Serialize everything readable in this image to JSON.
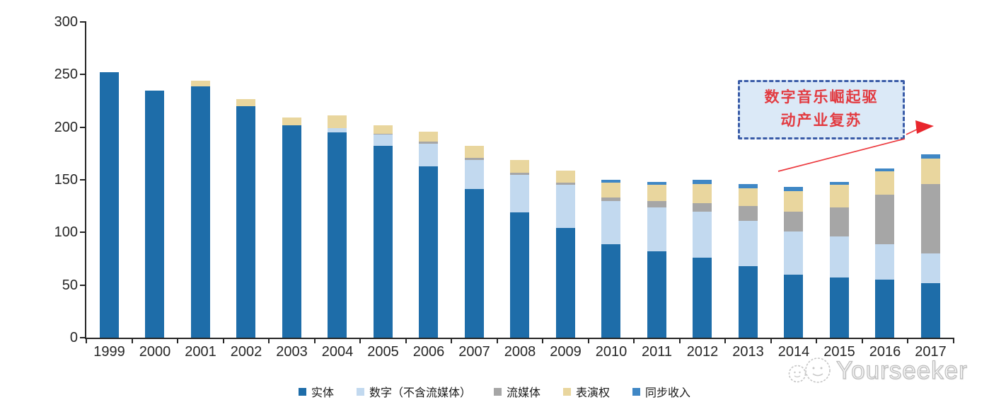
{
  "chart_data": {
    "type": "bar",
    "stacked": true,
    "title": "",
    "xlabel": "",
    "ylabel": "",
    "ylim": [
      0,
      300
    ],
    "y_ticks": [
      0,
      50,
      100,
      150,
      200,
      250,
      300
    ],
    "grid": false,
    "legend_position": "bottom",
    "categories": [
      "1999",
      "2000",
      "2001",
      "2002",
      "2003",
      "2004",
      "2005",
      "2006",
      "2007",
      "2008",
      "2009",
      "2010",
      "2011",
      "2012",
      "2013",
      "2014",
      "2015",
      "2016",
      "2017"
    ],
    "series": [
      {
        "id": "physical",
        "name": "实体",
        "color": "#1e6da9",
        "values": [
          252,
          235,
          239,
          220,
          202,
          195,
          182,
          163,
          141,
          119,
          104,
          89,
          82,
          76,
          68,
          60,
          57,
          55,
          52
        ]
      },
      {
        "id": "digital-excl-streaming",
        "name": "数字（不含流媒体）",
        "color": "#c2d9ef",
        "values": [
          0,
          0,
          0,
          0,
          0,
          4,
          11,
          21,
          28,
          36,
          41,
          41,
          42,
          44,
          43,
          41,
          39,
          34,
          28
        ]
      },
      {
        "id": "streaming",
        "name": "流媒体",
        "color": "#a6a6a6",
        "values": [
          0,
          0,
          0,
          0,
          0,
          0,
          1,
          2,
          2,
          2,
          2,
          3,
          6,
          8,
          14,
          19,
          28,
          47,
          66
        ]
      },
      {
        "id": "performance-rights",
        "name": "表演权",
        "color": "#e9d69e",
        "values": [
          0,
          0,
          5,
          7,
          7,
          12,
          8,
          10,
          11,
          12,
          12,
          14,
          15,
          18,
          17,
          19,
          21,
          22,
          24
        ]
      },
      {
        "id": "sync-revenue",
        "name": "同步收入",
        "color": "#3f87c5",
        "values": [
          0,
          0,
          0,
          0,
          0,
          0,
          0,
          0,
          0,
          0,
          0,
          3,
          3,
          4,
          4,
          4,
          3,
          3,
          4
        ]
      }
    ]
  },
  "annotation": {
    "line1": "数字音乐崛起驱",
    "line2": "动产业复苏",
    "text_color": "#e23b41",
    "border_color": "#3a5ca8",
    "fill_color": "#dbe9f7",
    "arrow_color": "#ec3b40"
  },
  "watermark": {
    "text": "Yourseeker"
  }
}
